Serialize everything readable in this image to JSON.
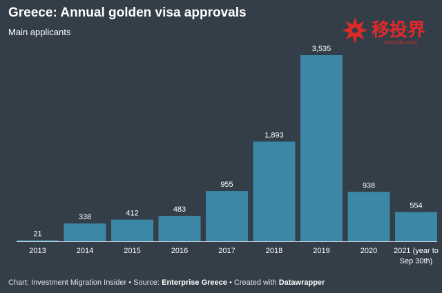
{
  "chart_data": {
    "type": "bar",
    "title": "Greece: Annual golden visa approvals",
    "subtitle": "Main applicants",
    "categories": [
      "2013",
      "2014",
      "2015",
      "2016",
      "2017",
      "2018",
      "2019",
      "2020",
      "2021 (year to Sep 30th)"
    ],
    "category_lines": [
      [
        "2013"
      ],
      [
        "2014"
      ],
      [
        "2015"
      ],
      [
        "2016"
      ],
      [
        "2017"
      ],
      [
        "2018"
      ],
      [
        "2019"
      ],
      [
        "2020"
      ],
      [
        "2021 (year to",
        "Sep 30th)"
      ]
    ],
    "values": [
      21,
      338,
      412,
      483,
      955,
      1893,
      3535,
      938,
      554
    ],
    "value_labels": [
      "21",
      "338",
      "412",
      "483",
      "955",
      "1,893",
      "3,535",
      "938",
      "554"
    ],
    "ylim": [
      0,
      3535
    ],
    "grid": false,
    "bar_color": "#3d87a6"
  },
  "footer": {
    "prefix": "Chart: Investment Migration Insider • Source: ",
    "source": "Enterprise Greece",
    "middle": " • Created with ",
    "tool": "Datawrapper"
  },
  "logo": {
    "chinese": "移投界",
    "domain": "YITOUJIE.COM",
    "icon": "red-flower-icon",
    "color": "#e02a2a"
  },
  "colors": {
    "background": "#333e48",
    "axis": "#cfd5da"
  }
}
